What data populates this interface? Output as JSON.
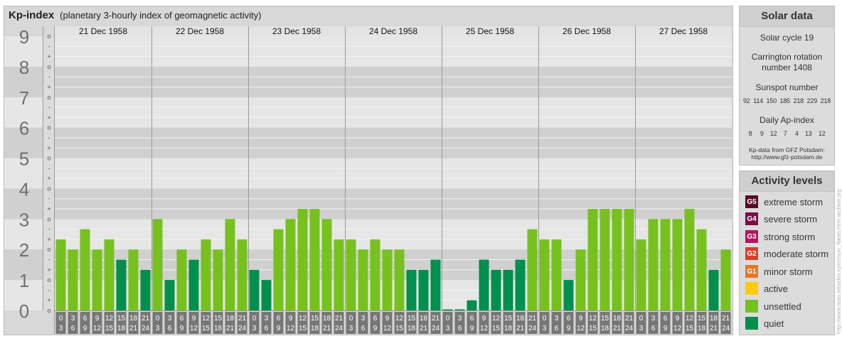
{
  "header": {
    "title": "Kp-index",
    "subtitle": "(planetary 3-hourly index of geomagnetic activity)"
  },
  "chart_data": {
    "type": "bar",
    "ylim": [
      0,
      9
    ],
    "y_ticks": [
      "0",
      "1",
      "2",
      "3",
      "4",
      "5",
      "6",
      "7",
      "8",
      "9"
    ],
    "minor_ticks": [
      "o",
      "+",
      "-"
    ],
    "days": [
      "21 Dec 1958",
      "22 Dec 1958",
      "23 Dec 1958",
      "24 Dec 1958",
      "25 Dec 1958",
      "26 Dec 1958",
      "27 Dec 1958"
    ],
    "interval_labels": [
      [
        "0",
        "3"
      ],
      [
        "3",
        "6"
      ],
      [
        "6",
        "9"
      ],
      [
        "9",
        "12"
      ],
      [
        "12",
        "15"
      ],
      [
        "15",
        "18"
      ],
      [
        "18",
        "21"
      ],
      [
        "21",
        "24"
      ]
    ],
    "values": [
      [
        2.333,
        2.0,
        2.667,
        2.0,
        2.333,
        1.667,
        2.0,
        1.333
      ],
      [
        3.0,
        1.0,
        2.0,
        1.667,
        2.333,
        2.0,
        3.0,
        2.333
      ],
      [
        1.333,
        1.0,
        2.667,
        3.0,
        3.333,
        3.333,
        3.0,
        2.333
      ],
      [
        2.333,
        2.0,
        2.333,
        2.0,
        2.0,
        1.333,
        1.333,
        1.667
      ],
      [
        0.0,
        0.0,
        0.333,
        1.667,
        1.333,
        1.333,
        1.667,
        2.667
      ],
      [
        2.333,
        2.333,
        1.0,
        2.0,
        3.333,
        3.333,
        3.333,
        3.333
      ],
      [
        2.333,
        3.0,
        3.0,
        3.0,
        3.333,
        2.667,
        1.333,
        2.0
      ]
    ],
    "colors": {
      "quiet": "#008f4c",
      "unsettled": "#77c11e"
    }
  },
  "solar": {
    "title": "Solar data",
    "cycle": "Solar cycle 19",
    "carrington_line1": "Carrington rotation",
    "carrington_line2": "number 1408",
    "sunspot_title": "Sunspot number",
    "sunspot_values": "92  114  150  185  218  229  218",
    "ap_title": "Daily Ap-index",
    "ap_values": "8     9    12    7     4    13    12",
    "credit_line1": "Kp-data from GFZ Potsdam:",
    "credit_line2": "http://www.gfz-potsdam.de"
  },
  "legend": {
    "title": "Activity levels",
    "items": [
      {
        "code": "G5",
        "label": "extreme storm",
        "color": "#5a0a28"
      },
      {
        "code": "G4",
        "label": "severe storm",
        "color": "#780f45"
      },
      {
        "code": "G3",
        "label": "strong storm",
        "color": "#b5155e"
      },
      {
        "code": "G2",
        "label": "moderate storm",
        "color": "#d8402a"
      },
      {
        "code": "G1",
        "label": "minor storm",
        "color": "#e87722"
      },
      {
        "code": "",
        "label": "active",
        "color": "#ffcc00"
      },
      {
        "code": "",
        "label": "unsettled",
        "color": "#77c11e"
      },
      {
        "code": "",
        "label": "quiet",
        "color": "#008f4c"
      }
    ]
  },
  "watermark": "http://www.tesis.lebedev.ru/en/sun_flares.html   archive.org"
}
